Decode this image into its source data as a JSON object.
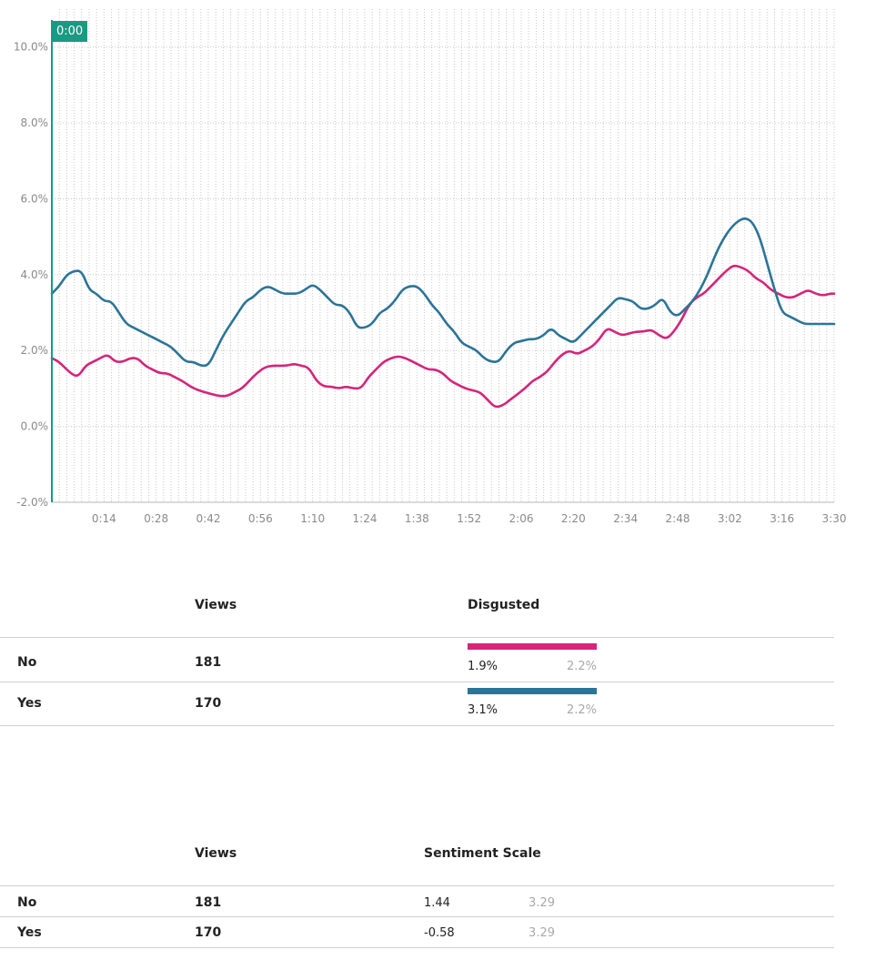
{
  "playhead": {
    "label": "0:00"
  },
  "chart_data": {
    "type": "line",
    "xlabel": "",
    "ylabel": "",
    "x_unit": "seconds",
    "xlim": [
      0,
      210
    ],
    "ylim": [
      -2.0,
      11.0
    ],
    "y_ticks": [
      -2.0,
      0.0,
      2.0,
      4.0,
      6.0,
      8.0,
      10.0
    ],
    "y_tick_labels": [
      "-2.0%",
      "0.0%",
      "2.0%",
      "4.0%",
      "6.0%",
      "8.0%",
      "10.0%"
    ],
    "x_ticks": [
      14,
      28,
      42,
      56,
      70,
      84,
      98,
      112,
      126,
      140,
      154,
      168,
      182,
      196,
      210
    ],
    "x_tick_labels": [
      "0:14",
      "0:28",
      "0:42",
      "0:56",
      "1:10",
      "1:24",
      "1:38",
      "1:52",
      "2:06",
      "2:20",
      "2:34",
      "2:48",
      "3:02",
      "3:16",
      "3:30"
    ],
    "grid": true,
    "series": [
      {
        "name": "No",
        "color": "#d6247a",
        "x": [
          0,
          2,
          5,
          7,
          9,
          11,
          13,
          15,
          17,
          19,
          21,
          23,
          25,
          27,
          29,
          31,
          33,
          35,
          38,
          41,
          43,
          45,
          47,
          49,
          51,
          53,
          55,
          57,
          59,
          61,
          63,
          65,
          67,
          69,
          71,
          73,
          75,
          77,
          79,
          81,
          83,
          85,
          87,
          89,
          91,
          93,
          95,
          97,
          99,
          101,
          103,
          105,
          107,
          109,
          111,
          113,
          115,
          117,
          119,
          121,
          123,
          125,
          127,
          129,
          131,
          133,
          135,
          137,
          139,
          141,
          143,
          145,
          147,
          149,
          151,
          153,
          155,
          157,
          159,
          161,
          163,
          165,
          167,
          169,
          171,
          173,
          175,
          177,
          179,
          181,
          183,
          185,
          187,
          189,
          191,
          193,
          195,
          197,
          199,
          201,
          203,
          205,
          207,
          209,
          210
        ],
        "y": [
          1.8,
          1.7,
          1.4,
          1.3,
          1.6,
          1.7,
          1.8,
          1.9,
          1.7,
          1.7,
          1.8,
          1.8,
          1.6,
          1.5,
          1.4,
          1.4,
          1.3,
          1.2,
          1.0,
          0.9,
          0.85,
          0.8,
          0.8,
          0.9,
          1.0,
          1.2,
          1.4,
          1.55,
          1.6,
          1.6,
          1.6,
          1.65,
          1.6,
          1.55,
          1.2,
          1.05,
          1.05,
          1.0,
          1.05,
          1.0,
          1.0,
          1.3,
          1.5,
          1.7,
          1.8,
          1.85,
          1.8,
          1.7,
          1.6,
          1.5,
          1.5,
          1.4,
          1.2,
          1.1,
          1.0,
          0.95,
          0.9,
          0.7,
          0.5,
          0.55,
          0.7,
          0.85,
          1.0,
          1.2,
          1.3,
          1.45,
          1.7,
          1.9,
          2.0,
          1.9,
          2.0,
          2.1,
          2.3,
          2.6,
          2.5,
          2.4,
          2.45,
          2.5,
          2.5,
          2.55,
          2.4,
          2.3,
          2.5,
          2.8,
          3.2,
          3.4,
          3.5,
          3.7,
          3.9,
          4.1,
          4.25,
          4.2,
          4.1,
          3.9,
          3.8,
          3.6,
          3.5,
          3.4,
          3.4,
          3.5,
          3.6,
          3.5,
          3.45,
          3.5,
          3.5
        ]
      },
      {
        "name": "Yes",
        "color": "#2b7498",
        "x": [
          0,
          2,
          4,
          6,
          8,
          10,
          12,
          14,
          16,
          18,
          20,
          22,
          24,
          26,
          28,
          30,
          32,
          34,
          36,
          38,
          40,
          42,
          44,
          46,
          48,
          50,
          52,
          54,
          56,
          58,
          60,
          62,
          64,
          66,
          68,
          70,
          72,
          74,
          76,
          78,
          80,
          82,
          84,
          86,
          88,
          90,
          92,
          94,
          96,
          98,
          100,
          102,
          104,
          106,
          108,
          110,
          112,
          114,
          116,
          118,
          120,
          122,
          124,
          126,
          128,
          130,
          132,
          134,
          136,
          138,
          140,
          142,
          144,
          146,
          148,
          150,
          152,
          154,
          156,
          158,
          160,
          162,
          164,
          166,
          168,
          170,
          172,
          174,
          176,
          178,
          180,
          182,
          184,
          186,
          188,
          190,
          192,
          194,
          196,
          198,
          200,
          202,
          204,
          206,
          208,
          210
        ],
        "y": [
          3.5,
          3.7,
          4.0,
          4.1,
          4.1,
          3.6,
          3.5,
          3.3,
          3.3,
          3.0,
          2.7,
          2.6,
          2.5,
          2.4,
          2.3,
          2.2,
          2.1,
          1.9,
          1.7,
          1.7,
          1.6,
          1.6,
          2.0,
          2.4,
          2.7,
          3.0,
          3.3,
          3.4,
          3.6,
          3.7,
          3.6,
          3.5,
          3.5,
          3.5,
          3.6,
          3.75,
          3.6,
          3.4,
          3.2,
          3.2,
          3.0,
          2.6,
          2.6,
          2.7,
          3.0,
          3.1,
          3.3,
          3.6,
          3.7,
          3.7,
          3.5,
          3.2,
          3.0,
          2.7,
          2.5,
          2.2,
          2.1,
          2.0,
          1.8,
          1.7,
          1.7,
          2.0,
          2.2,
          2.25,
          2.3,
          2.3,
          2.4,
          2.6,
          2.4,
          2.3,
          2.2,
          2.4,
          2.6,
          2.8,
          3.0,
          3.2,
          3.4,
          3.35,
          3.3,
          3.1,
          3.1,
          3.2,
          3.4,
          3.0,
          2.9,
          3.1,
          3.3,
          3.6,
          4.0,
          4.5,
          4.9,
          5.2,
          5.4,
          5.5,
          5.4,
          5.0,
          4.3,
          3.6,
          3.0,
          2.9,
          2.8,
          2.7,
          2.7,
          2.7,
          2.7,
          2.7
        ]
      }
    ]
  },
  "table1": {
    "headers": {
      "views": "Views",
      "metric": "Disgusted"
    },
    "rows": [
      {
        "label": "No",
        "views": "181",
        "value": "1.9%",
        "avg": "2.2%",
        "color": "#d6247a"
      },
      {
        "label": "Yes",
        "views": "170",
        "value": "3.1%",
        "avg": "2.2%",
        "color": "#2b7498"
      }
    ]
  },
  "table2": {
    "headers": {
      "views": "Views",
      "metric": "Sentiment Scale"
    },
    "rows": [
      {
        "label": "No",
        "views": "181",
        "value": "1.44",
        "avg": "3.29"
      },
      {
        "label": "Yes",
        "views": "170",
        "value": "-0.58",
        "avg": "3.29"
      }
    ]
  }
}
